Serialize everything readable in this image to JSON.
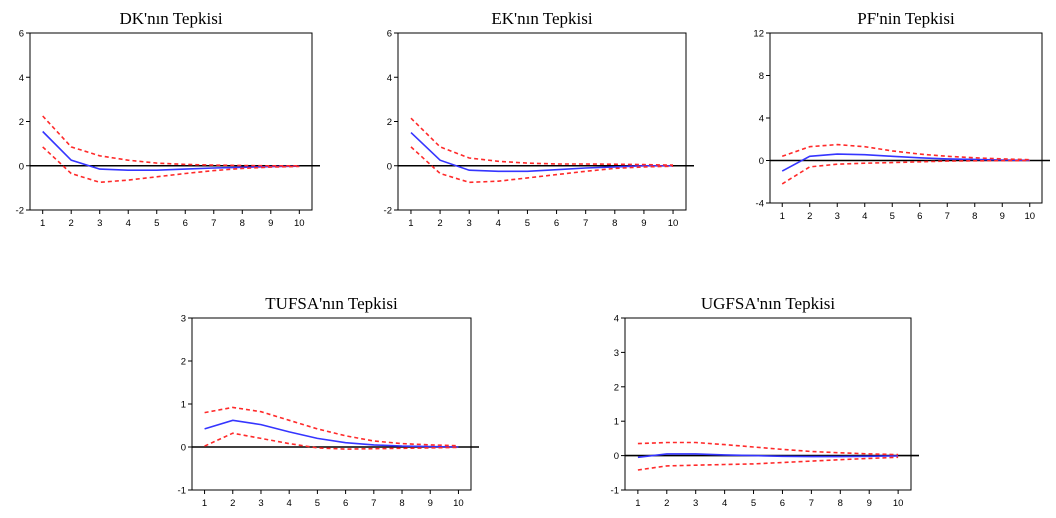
{
  "chart_data": [
    {
      "type": "line",
      "title": "DK'nın Tepkisi",
      "x": [
        1,
        2,
        3,
        4,
        5,
        6,
        7,
        8,
        9,
        10
      ],
      "ylim": [
        -2,
        6
      ],
      "yticks": [
        -2,
        0,
        2,
        4,
        6
      ],
      "series": [
        {
          "role": "response",
          "values": [
            1.55,
            0.25,
            -0.15,
            -0.2,
            -0.2,
            -0.15,
            -0.1,
            -0.07,
            -0.04,
            -0.02
          ]
        },
        {
          "role": "upper",
          "values": [
            2.25,
            0.85,
            0.45,
            0.25,
            0.12,
            0.06,
            0.03,
            0.01,
            0.0,
            0.0
          ]
        },
        {
          "role": "lower",
          "values": [
            0.85,
            -0.35,
            -0.75,
            -0.65,
            -0.5,
            -0.35,
            -0.22,
            -0.12,
            -0.06,
            -0.03
          ]
        }
      ]
    },
    {
      "type": "line",
      "title": "EK'nın Tepkisi",
      "x": [
        1,
        2,
        3,
        4,
        5,
        6,
        7,
        8,
        9,
        10
      ],
      "ylim": [
        -2,
        6
      ],
      "yticks": [
        -2,
        0,
        2,
        4,
        6
      ],
      "series": [
        {
          "role": "response",
          "values": [
            1.5,
            0.25,
            -0.2,
            -0.25,
            -0.25,
            -0.18,
            -0.1,
            -0.05,
            0.0,
            0.0
          ]
        },
        {
          "role": "upper",
          "values": [
            2.15,
            0.85,
            0.35,
            0.2,
            0.12,
            0.08,
            0.08,
            0.07,
            0.05,
            0.03
          ]
        },
        {
          "role": "lower",
          "values": [
            0.85,
            -0.35,
            -0.75,
            -0.7,
            -0.55,
            -0.4,
            -0.25,
            -0.12,
            -0.05,
            -0.02
          ]
        }
      ]
    },
    {
      "type": "line",
      "title": "PF'nin Tepkisi",
      "x": [
        1,
        2,
        3,
        4,
        5,
        6,
        7,
        8,
        9,
        10
      ],
      "ylim": [
        -4,
        12
      ],
      "yticks": [
        -4,
        0,
        4,
        8,
        12
      ],
      "series": [
        {
          "role": "response",
          "values": [
            -1.0,
            0.4,
            0.6,
            0.55,
            0.4,
            0.25,
            0.15,
            0.1,
            0.05,
            0.02
          ]
        },
        {
          "role": "upper",
          "values": [
            0.4,
            1.3,
            1.5,
            1.3,
            0.9,
            0.6,
            0.4,
            0.25,
            0.15,
            0.08
          ]
        },
        {
          "role": "lower",
          "values": [
            -2.2,
            -0.6,
            -0.35,
            -0.25,
            -0.2,
            -0.12,
            -0.06,
            -0.03,
            -0.02,
            -0.01
          ]
        }
      ]
    },
    {
      "type": "line",
      "title": "TUFSA'nın Tepkisi",
      "x": [
        1,
        2,
        3,
        4,
        5,
        6,
        7,
        8,
        9,
        10
      ],
      "ylim": [
        -1,
        3
      ],
      "yticks": [
        -1,
        0,
        1,
        2,
        3
      ],
      "series": [
        {
          "role": "response",
          "values": [
            0.42,
            0.62,
            0.52,
            0.35,
            0.2,
            0.1,
            0.05,
            0.02,
            0.01,
            0.0
          ]
        },
        {
          "role": "upper",
          "values": [
            0.8,
            0.92,
            0.82,
            0.62,
            0.42,
            0.26,
            0.14,
            0.08,
            0.05,
            0.03
          ]
        },
        {
          "role": "lower",
          "values": [
            0.02,
            0.32,
            0.2,
            0.08,
            -0.02,
            -0.05,
            -0.04,
            -0.03,
            -0.02,
            -0.01
          ]
        }
      ]
    },
    {
      "type": "line",
      "title": "UGFSA'nın Tepkisi",
      "x": [
        1,
        2,
        3,
        4,
        5,
        6,
        7,
        8,
        9,
        10
      ],
      "ylim": [
        -1,
        4
      ],
      "yticks": [
        -1,
        0,
        1,
        2,
        3,
        4
      ],
      "series": [
        {
          "role": "response",
          "values": [
            -0.05,
            0.05,
            0.05,
            0.02,
            0.0,
            -0.02,
            -0.03,
            -0.03,
            -0.02,
            -0.01
          ]
        },
        {
          "role": "upper",
          "values": [
            0.35,
            0.38,
            0.38,
            0.32,
            0.25,
            0.18,
            0.12,
            0.08,
            0.05,
            0.03
          ]
        },
        {
          "role": "lower",
          "values": [
            -0.42,
            -0.3,
            -0.28,
            -0.26,
            -0.24,
            -0.2,
            -0.16,
            -0.12,
            -0.08,
            -0.05
          ]
        }
      ]
    }
  ],
  "colors": {
    "response": "#3535ff",
    "band": "#ff2a2a",
    "zero_line": "#000000",
    "frame": "#000000"
  }
}
